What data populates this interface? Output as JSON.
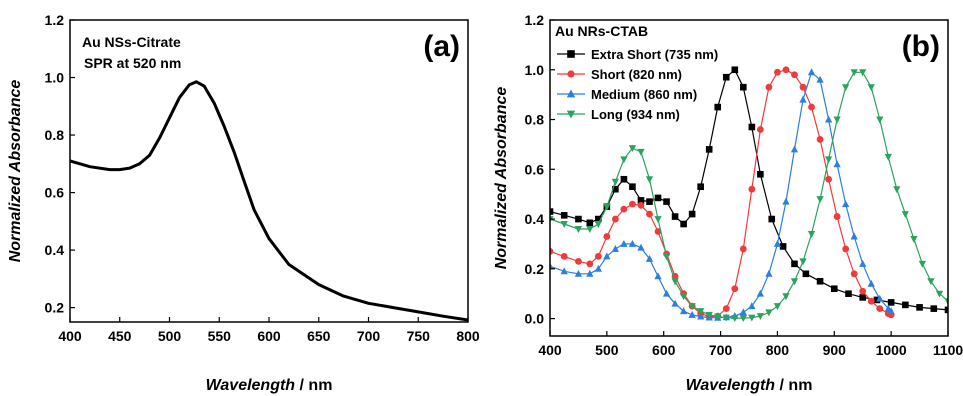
{
  "chart_data": [
    {
      "type": "line",
      "panel_label": "(a)",
      "annotations": [
        "Au NSs-Citrate",
        "SPR at 520 nm"
      ],
      "xlabel": "Wavelength",
      "xunit": " / nm",
      "ylabel": "Normalized Absorbance",
      "xlim": [
        400,
        800
      ],
      "ylim": [
        0.15,
        1.2
      ],
      "xticks": [
        400,
        450,
        500,
        550,
        600,
        650,
        700,
        750,
        800
      ],
      "yticks": [
        0.2,
        0.4,
        0.6,
        0.8,
        1.0,
        1.2
      ],
      "ytick_labels": [
        "0.2",
        "0.4",
        "0.6",
        "0.8",
        "1.0",
        "1.2"
      ],
      "grid": false,
      "series": [
        {
          "color": "#000000",
          "marker": "none",
          "x": [
            400,
            420,
            440,
            450,
            460,
            470,
            480,
            490,
            500,
            510,
            520,
            527,
            535,
            545,
            555,
            565,
            575,
            585,
            600,
            620,
            650,
            675,
            700,
            725,
            750,
            775,
            800
          ],
          "y": [
            0.71,
            0.69,
            0.68,
            0.68,
            0.685,
            0.7,
            0.73,
            0.79,
            0.86,
            0.93,
            0.975,
            0.985,
            0.97,
            0.91,
            0.83,
            0.74,
            0.64,
            0.54,
            0.44,
            0.35,
            0.28,
            0.24,
            0.215,
            0.2,
            0.185,
            0.17,
            0.157
          ]
        }
      ]
    },
    {
      "type": "line",
      "panel_label": "(b)",
      "title": "Au NRs-CTAB",
      "xlabel": "Wavelength",
      "xunit": " / nm",
      "ylabel": "Normalized Absorbance",
      "xlim": [
        400,
        1100
      ],
      "ylim": [
        -0.07,
        1.2
      ],
      "xticks": [
        400,
        500,
        600,
        700,
        800,
        900,
        1000,
        1100
      ],
      "yticks": [
        0.0,
        0.2,
        0.4,
        0.6,
        0.8,
        1.0,
        1.2
      ],
      "ytick_labels": [
        "0.0",
        "0.2",
        "0.4",
        "0.6",
        "0.8",
        "1.0",
        "1.2"
      ],
      "grid": false,
      "legend_position": "top-left",
      "series": [
        {
          "name": "Extra Short (735 nm)",
          "color": "#000000",
          "marker": "square",
          "x": [
            400,
            425,
            450,
            470,
            485,
            500,
            515,
            530,
            545,
            560,
            575,
            590,
            605,
            620,
            635,
            650,
            665,
            680,
            695,
            710,
            725,
            740,
            755,
            770,
            790,
            810,
            830,
            850,
            875,
            900,
            925,
            950,
            975,
            1000,
            1025,
            1050,
            1075,
            1100
          ],
          "y": [
            0.43,
            0.415,
            0.4,
            0.385,
            0.4,
            0.45,
            0.52,
            0.56,
            0.53,
            0.475,
            0.47,
            0.485,
            0.47,
            0.41,
            0.38,
            0.42,
            0.53,
            0.68,
            0.85,
            0.97,
            1.0,
            0.93,
            0.77,
            0.58,
            0.4,
            0.29,
            0.22,
            0.18,
            0.15,
            0.12,
            0.1,
            0.085,
            0.075,
            0.065,
            0.055,
            0.045,
            0.04,
            0.035
          ]
        },
        {
          "name": "Short (820 nm)",
          "color": "#ee3b3b",
          "marker": "circle",
          "x": [
            400,
            425,
            450,
            470,
            485,
            500,
            515,
            530,
            545,
            560,
            575,
            590,
            605,
            620,
            635,
            650,
            665,
            680,
            695,
            710,
            725,
            740,
            755,
            770,
            785,
            800,
            815,
            830,
            845,
            860,
            875,
            890,
            905,
            920,
            935,
            950,
            965,
            980,
            995,
            1000
          ],
          "y": [
            0.27,
            0.25,
            0.23,
            0.22,
            0.25,
            0.33,
            0.4,
            0.44,
            0.46,
            0.455,
            0.42,
            0.35,
            0.26,
            0.17,
            0.1,
            0.05,
            0.02,
            0.008,
            0.01,
            0.04,
            0.12,
            0.28,
            0.52,
            0.76,
            0.93,
            0.99,
            1.0,
            0.98,
            0.93,
            0.85,
            0.72,
            0.56,
            0.41,
            0.28,
            0.18,
            0.11,
            0.07,
            0.04,
            0.02,
            0.015
          ]
        },
        {
          "name": "Medium (860 nm)",
          "color": "#2a7fe0",
          "marker": "triangle-up",
          "x": [
            400,
            425,
            450,
            470,
            485,
            500,
            515,
            530,
            545,
            560,
            575,
            590,
            605,
            620,
            635,
            650,
            665,
            680,
            695,
            710,
            725,
            740,
            755,
            770,
            785,
            800,
            815,
            830,
            845,
            860,
            875,
            890,
            905,
            920,
            935,
            950,
            965,
            980,
            995,
            1000
          ],
          "y": [
            0.21,
            0.19,
            0.18,
            0.18,
            0.2,
            0.25,
            0.28,
            0.3,
            0.3,
            0.285,
            0.24,
            0.17,
            0.1,
            0.06,
            0.03,
            0.015,
            0.008,
            0.004,
            0.003,
            0.005,
            0.01,
            0.025,
            0.05,
            0.1,
            0.18,
            0.3,
            0.47,
            0.68,
            0.88,
            0.99,
            0.96,
            0.8,
            0.62,
            0.46,
            0.33,
            0.22,
            0.14,
            0.08,
            0.04,
            0.03
          ]
        },
        {
          "name": "Long (934 nm)",
          "color": "#2ca25f",
          "marker": "triangle-down",
          "x": [
            400,
            425,
            450,
            470,
            485,
            500,
            515,
            530,
            545,
            560,
            575,
            590,
            605,
            620,
            635,
            650,
            665,
            680,
            695,
            710,
            725,
            740,
            755,
            770,
            785,
            800,
            815,
            830,
            845,
            860,
            875,
            890,
            905,
            920,
            935,
            950,
            965,
            980,
            995,
            1010,
            1025,
            1040,
            1055,
            1070,
            1085,
            1100
          ],
          "y": [
            0.4,
            0.38,
            0.36,
            0.36,
            0.38,
            0.45,
            0.55,
            0.64,
            0.685,
            0.67,
            0.56,
            0.4,
            0.25,
            0.15,
            0.09,
            0.05,
            0.03,
            0.015,
            0.008,
            0.004,
            0.002,
            0.002,
            0.004,
            0.01,
            0.025,
            0.05,
            0.09,
            0.15,
            0.23,
            0.34,
            0.48,
            0.64,
            0.8,
            0.93,
            0.99,
            0.99,
            0.93,
            0.8,
            0.65,
            0.52,
            0.42,
            0.32,
            0.22,
            0.15,
            0.1,
            0.07
          ]
        }
      ]
    }
  ]
}
